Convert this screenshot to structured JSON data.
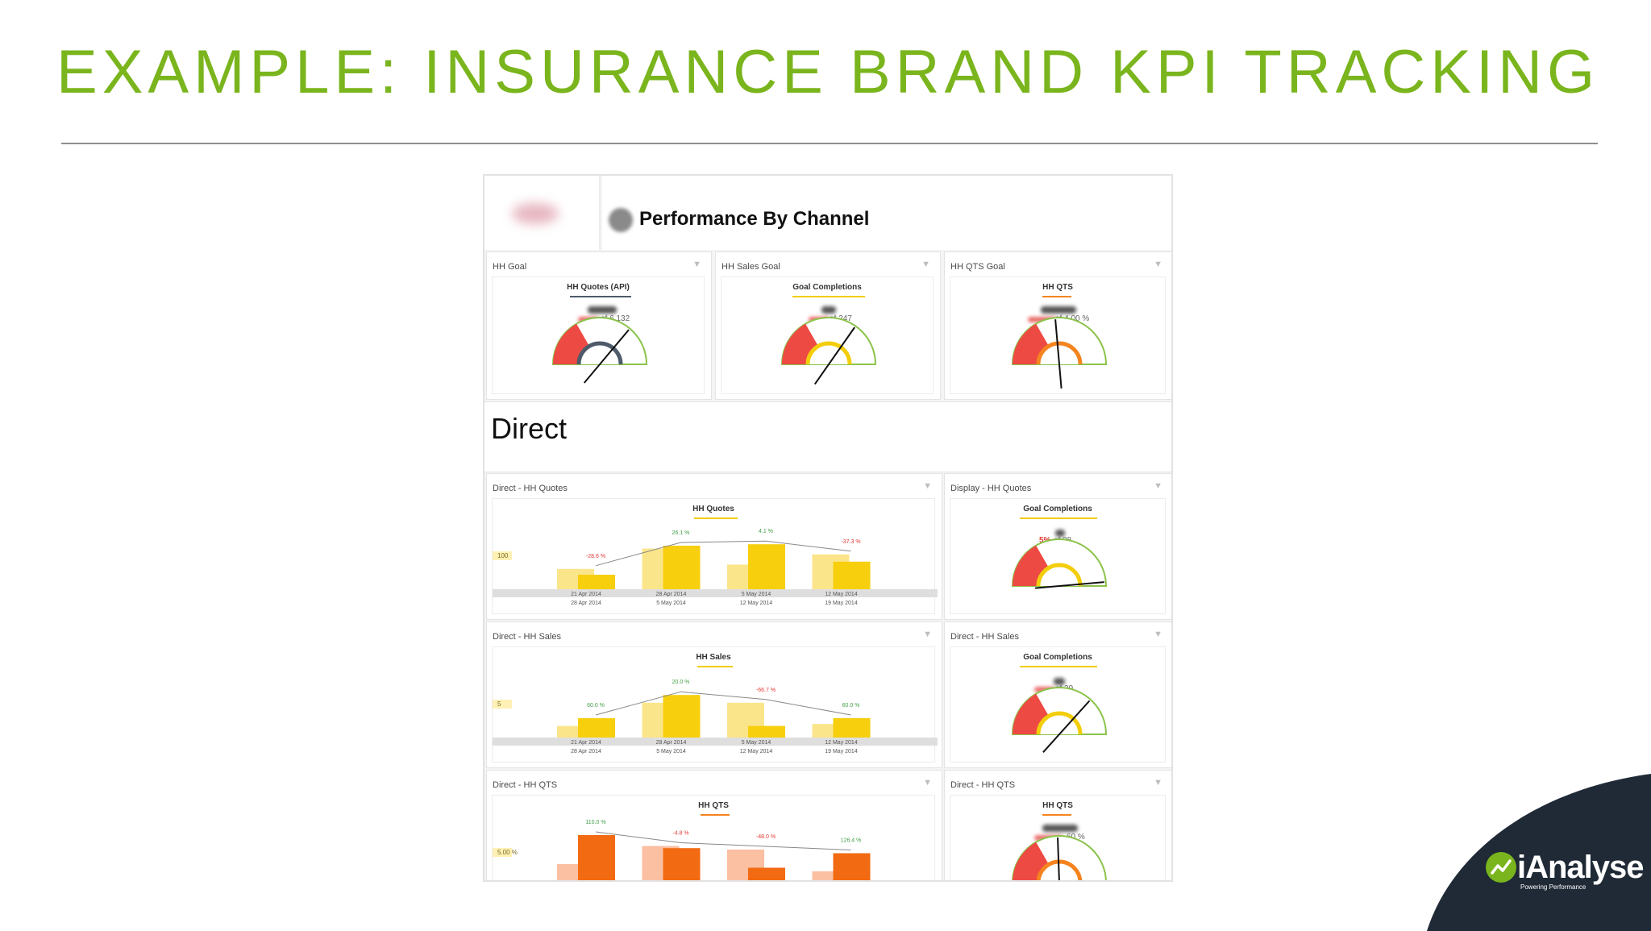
{
  "slide": {
    "title": "EXAMPLE: INSURANCE BRAND KPI TRACKING",
    "title_color": "#7ab51d",
    "brand": {
      "name": "iAnalyse",
      "tagline": "Powering Performance",
      "corner_color": "#1f2a36",
      "mark_color": "#7ab51d"
    }
  },
  "dashboard": {
    "title": "Performance By Channel",
    "section_label": "Direct",
    "goal_cards": [
      {
        "title": "HH Goal",
        "widget": "HH Quotes (API)",
        "of_text": "of 6,132",
        "accent": "#4d5b6b"
      },
      {
        "title": "HH Sales Goal",
        "widget": "Goal Completions",
        "of_text": "of 247",
        "accent": "#f2cd0a"
      },
      {
        "title": "HH QTS Goal",
        "widget": "HH QTS",
        "of_text": "of 4.00 %",
        "accent": "#f5841f"
      }
    ],
    "side_cards": [
      {
        "title": "Display - HH Quotes",
        "widget": "Goal Completions",
        "pct_text": "5%",
        "of_text": "of 38",
        "accent": "#f2cd0a"
      },
      {
        "title": "Direct - HH Sales",
        "widget": "Goal Completions",
        "of_text": "of 39",
        "accent": "#f2cd0a"
      },
      {
        "title": "Direct - HH QTS",
        "widget": "HH QTS",
        "of_text": "60 %",
        "accent": "#f5841f"
      }
    ],
    "bar_cards": [
      {
        "title": "Direct - HH Quotes",
        "widget": "HH Quotes",
        "y_label": "100"
      },
      {
        "title": "Direct - HH Sales",
        "widget": "HH Sales",
        "y_label": "5"
      },
      {
        "title": "Direct - HH QTS",
        "widget": "HH QTS",
        "y_label": "5.00 %"
      }
    ],
    "filter_icon": "funnel-icon"
  },
  "chart_data": [
    {
      "type": "bar",
      "title": "HH Quotes",
      "categories": [
        "21 Apr 2014 - 28 Apr 2014",
        "28 Apr 2014 - 5 May 2014",
        "5 May 2014 - 12 May 2014",
        "12 May 2014 - 19 May 2014"
      ],
      "tick_labels": [
        [
          "21 Apr 2014",
          "28 Apr 2014"
        ],
        [
          "28 Apr 2014",
          "5 May 2014"
        ],
        [
          "5 May 2014",
          "12 May 2014"
        ],
        [
          "12 May 2014",
          "19 May 2014"
        ]
      ],
      "series": [
        {
          "name": "",
          "values": [
            70,
            140,
            85,
            120
          ],
          "color": "#fbe58a"
        },
        {
          "name": "",
          "values": [
            50,
            150,
            155,
            95
          ],
          "color": "#f7cf0d"
        }
      ],
      "change_labels": [
        "-28.6 %",
        "26.1 %",
        "4.1 %",
        "-37.3 %"
      ],
      "change_colors": [
        "#e53935",
        "#43a047",
        "#43a047",
        "#e53935"
      ],
      "ylim": [
        0,
        200
      ]
    },
    {
      "type": "bar",
      "title": "HH Sales",
      "categories": [
        "21 Apr 2014 - 28 Apr 2014",
        "28 Apr 2014 - 5 May 2014",
        "5 May 2014 - 12 May 2014",
        "12 May 2014 - 19 May 2014"
      ],
      "tick_labels": [
        [
          "21 Apr 2014",
          "28 Apr 2014"
        ],
        [
          "28 Apr 2014",
          "5 May 2014"
        ],
        [
          "5 May 2014",
          "12 May 2014"
        ],
        [
          "12 May 2014",
          "19 May 2014"
        ]
      ],
      "series": [
        {
          "name": "",
          "values": [
            3,
            9,
            9,
            3.5
          ],
          "color": "#fbe58a"
        },
        {
          "name": "",
          "values": [
            5,
            11,
            3,
            5
          ],
          "color": "#f7cf0d"
        }
      ],
      "change_labels": [
        "60.0 %",
        "20.0 %",
        "-66.7 %",
        "60.0 %"
      ],
      "change_colors": [
        "#43a047",
        "#43a047",
        "#e53935",
        "#43a047"
      ],
      "ylim": [
        0,
        15
      ]
    },
    {
      "type": "bar",
      "title": "HH QTS",
      "categories": [
        "21 Apr 2014 - 28 Apr 2014",
        "28 Apr 2014 - 5 May 2014",
        "5 May 2014 - 12 May 2014",
        "12 May 2014 - 19 May 2014"
      ],
      "tick_labels": [],
      "series": [
        {
          "name": "",
          "values": [
            3,
            5.5,
            5,
            2
          ],
          "color": "#fbbfa1"
        },
        {
          "name": "",
          "values": [
            7,
            5.2,
            2.5,
            4.5
          ],
          "color": "#f26a12"
        }
      ],
      "change_labels": [
        "110.0 %",
        "-4.8 %",
        "-48.0 %",
        "126.4 %"
      ],
      "change_colors": [
        "#43a047",
        "#e53935",
        "#e53935",
        "#43a047"
      ],
      "ylim": [
        0,
        8
      ]
    }
  ]
}
